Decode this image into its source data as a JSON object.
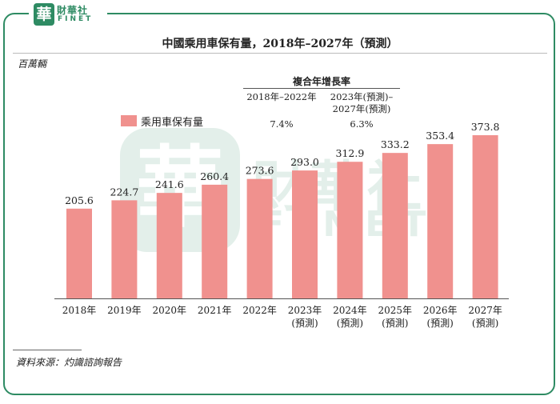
{
  "brand": {
    "seal_char": "華",
    "name_cn": "財華社",
    "name_en": "FINET",
    "color": "#2e8b63"
  },
  "chart_data": {
    "type": "bar",
    "title": "中國乘用車保有量，2018年–2027年（預測）",
    "unit_label": "百萬輛",
    "legend": "乘用車保有量",
    "categories": [
      "2018年",
      "2019年",
      "2020年",
      "2021年",
      "2022年",
      "2023年",
      "2024年",
      "2025年",
      "2026年",
      "2027年"
    ],
    "forecast_note": [
      "",
      "",
      "",
      "",
      "",
      "(預測)",
      "(預測)",
      "(預測)",
      "(預測)",
      "(預測)"
    ],
    "values": [
      205.6,
      224.7,
      241.6,
      260.4,
      273.6,
      293.0,
      312.9,
      333.2,
      353.4,
      373.8
    ],
    "value_labels": [
      "205.6",
      "224.7",
      "241.6",
      "260.4",
      "273.6",
      "293.0",
      "312.9",
      "333.2",
      "353.4",
      "373.8"
    ],
    "ylim": [
      0,
      373.8
    ],
    "bar_color": "#f0918e",
    "cagr": {
      "title": "複合年增長率",
      "periods": [
        {
          "label_line1": "2018年–2022年",
          "label_line2": "",
          "value": "7.4%"
        },
        {
          "label_line1": "2023年(預測)–",
          "label_line2": "2027年(預測)",
          "value": "6.3%"
        }
      ]
    }
  },
  "source": "資料來源：灼識諮詢報告"
}
